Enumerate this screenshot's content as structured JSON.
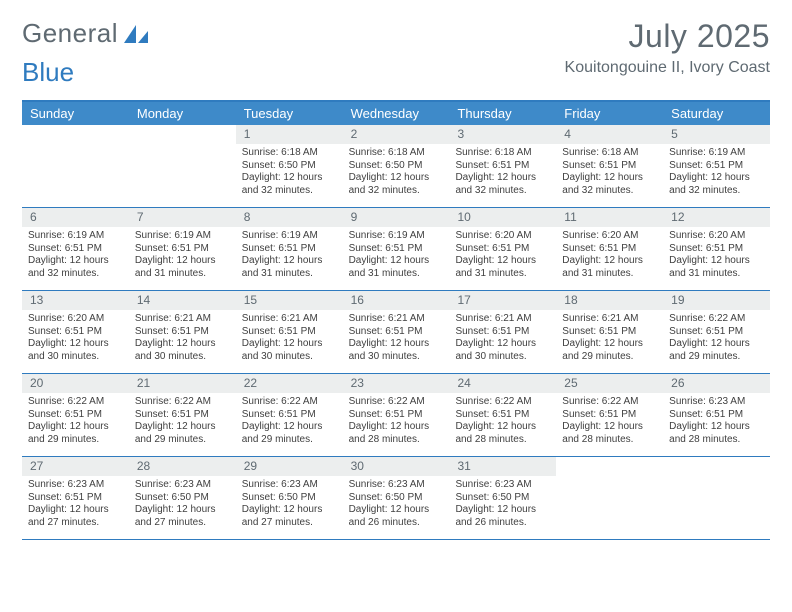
{
  "brand": {
    "general": "General",
    "blue": "Blue"
  },
  "title": "July 2025",
  "location": "Kouitongouine II, Ivory Coast",
  "dow": [
    "Sunday",
    "Monday",
    "Tuesday",
    "Wednesday",
    "Thursday",
    "Friday",
    "Saturday"
  ],
  "colors": {
    "accent": "#3e8ac9",
    "rule": "#2f7bbf",
    "daynum_bg": "#eceeee",
    "text_muted": "#5f6a72"
  },
  "weeks": [
    [
      {
        "n": "",
        "sr": "",
        "ss": "",
        "dl": "",
        "empty": true
      },
      {
        "n": "",
        "sr": "",
        "ss": "",
        "dl": "",
        "empty": true
      },
      {
        "n": "1",
        "sr": "6:18 AM",
        "ss": "6:50 PM",
        "dl": "12 hours and 32 minutes."
      },
      {
        "n": "2",
        "sr": "6:18 AM",
        "ss": "6:50 PM",
        "dl": "12 hours and 32 minutes."
      },
      {
        "n": "3",
        "sr": "6:18 AM",
        "ss": "6:51 PM",
        "dl": "12 hours and 32 minutes."
      },
      {
        "n": "4",
        "sr": "6:18 AM",
        "ss": "6:51 PM",
        "dl": "12 hours and 32 minutes."
      },
      {
        "n": "5",
        "sr": "6:19 AM",
        "ss": "6:51 PM",
        "dl": "12 hours and 32 minutes."
      }
    ],
    [
      {
        "n": "6",
        "sr": "6:19 AM",
        "ss": "6:51 PM",
        "dl": "12 hours and 32 minutes."
      },
      {
        "n": "7",
        "sr": "6:19 AM",
        "ss": "6:51 PM",
        "dl": "12 hours and 31 minutes."
      },
      {
        "n": "8",
        "sr": "6:19 AM",
        "ss": "6:51 PM",
        "dl": "12 hours and 31 minutes."
      },
      {
        "n": "9",
        "sr": "6:19 AM",
        "ss": "6:51 PM",
        "dl": "12 hours and 31 minutes."
      },
      {
        "n": "10",
        "sr": "6:20 AM",
        "ss": "6:51 PM",
        "dl": "12 hours and 31 minutes."
      },
      {
        "n": "11",
        "sr": "6:20 AM",
        "ss": "6:51 PM",
        "dl": "12 hours and 31 minutes."
      },
      {
        "n": "12",
        "sr": "6:20 AM",
        "ss": "6:51 PM",
        "dl": "12 hours and 31 minutes."
      }
    ],
    [
      {
        "n": "13",
        "sr": "6:20 AM",
        "ss": "6:51 PM",
        "dl": "12 hours and 30 minutes."
      },
      {
        "n": "14",
        "sr": "6:21 AM",
        "ss": "6:51 PM",
        "dl": "12 hours and 30 minutes."
      },
      {
        "n": "15",
        "sr": "6:21 AM",
        "ss": "6:51 PM",
        "dl": "12 hours and 30 minutes."
      },
      {
        "n": "16",
        "sr": "6:21 AM",
        "ss": "6:51 PM",
        "dl": "12 hours and 30 minutes."
      },
      {
        "n": "17",
        "sr": "6:21 AM",
        "ss": "6:51 PM",
        "dl": "12 hours and 30 minutes."
      },
      {
        "n": "18",
        "sr": "6:21 AM",
        "ss": "6:51 PM",
        "dl": "12 hours and 29 minutes."
      },
      {
        "n": "19",
        "sr": "6:22 AM",
        "ss": "6:51 PM",
        "dl": "12 hours and 29 minutes."
      }
    ],
    [
      {
        "n": "20",
        "sr": "6:22 AM",
        "ss": "6:51 PM",
        "dl": "12 hours and 29 minutes."
      },
      {
        "n": "21",
        "sr": "6:22 AM",
        "ss": "6:51 PM",
        "dl": "12 hours and 29 minutes."
      },
      {
        "n": "22",
        "sr": "6:22 AM",
        "ss": "6:51 PM",
        "dl": "12 hours and 29 minutes."
      },
      {
        "n": "23",
        "sr": "6:22 AM",
        "ss": "6:51 PM",
        "dl": "12 hours and 28 minutes."
      },
      {
        "n": "24",
        "sr": "6:22 AM",
        "ss": "6:51 PM",
        "dl": "12 hours and 28 minutes."
      },
      {
        "n": "25",
        "sr": "6:22 AM",
        "ss": "6:51 PM",
        "dl": "12 hours and 28 minutes."
      },
      {
        "n": "26",
        "sr": "6:23 AM",
        "ss": "6:51 PM",
        "dl": "12 hours and 28 minutes."
      }
    ],
    [
      {
        "n": "27",
        "sr": "6:23 AM",
        "ss": "6:51 PM",
        "dl": "12 hours and 27 minutes."
      },
      {
        "n": "28",
        "sr": "6:23 AM",
        "ss": "6:50 PM",
        "dl": "12 hours and 27 minutes."
      },
      {
        "n": "29",
        "sr": "6:23 AM",
        "ss": "6:50 PM",
        "dl": "12 hours and 27 minutes."
      },
      {
        "n": "30",
        "sr": "6:23 AM",
        "ss": "6:50 PM",
        "dl": "12 hours and 26 minutes."
      },
      {
        "n": "31",
        "sr": "6:23 AM",
        "ss": "6:50 PM",
        "dl": "12 hours and 26 minutes."
      },
      {
        "n": "",
        "sr": "",
        "ss": "",
        "dl": "",
        "empty": true
      },
      {
        "n": "",
        "sr": "",
        "ss": "",
        "dl": "",
        "empty": true
      }
    ]
  ],
  "labels": {
    "sunrise": "Sunrise:",
    "sunset": "Sunset:",
    "daylight": "Daylight:"
  }
}
